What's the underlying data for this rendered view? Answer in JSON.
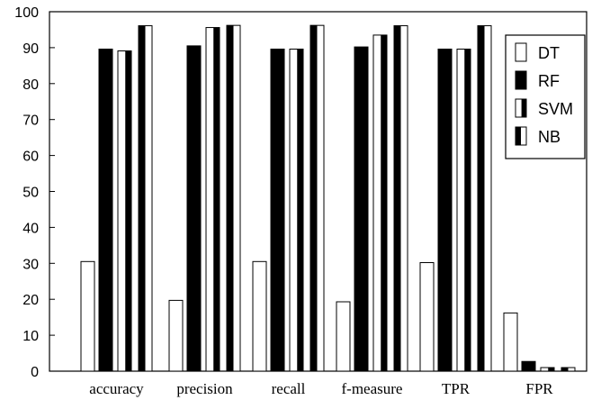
{
  "chart_data": {
    "type": "bar",
    "categories": [
      "accuracy",
      "precision",
      "recall",
      "f-measure",
      "TPR",
      "FPR"
    ],
    "series": [
      {
        "name": "DT",
        "values": [
          30.5,
          19.7,
          30.5,
          19.3,
          30.2,
          16.2
        ]
      },
      {
        "name": "RF",
        "values": [
          89.6,
          90.5,
          89.6,
          90.2,
          89.6,
          2.7
        ]
      },
      {
        "name": "SVM",
        "values": [
          89.1,
          95.6,
          89.6,
          93.5,
          89.6,
          1.0
        ]
      },
      {
        "name": "NB",
        "values": [
          96.1,
          96.2,
          96.2,
          96.1,
          96.1,
          1.0
        ]
      }
    ],
    "ylim": [
      0,
      100
    ],
    "yticks": [
      "0",
      "10",
      "20",
      "30",
      "40",
      "50",
      "60",
      "70",
      "80",
      "90",
      "100"
    ],
    "legend_position": "top-right",
    "grid": false,
    "series_fills": {
      "DT": "white",
      "RF": "black",
      "SVM": "white-left-black-right",
      "NB": "black-left-white-right"
    }
  }
}
